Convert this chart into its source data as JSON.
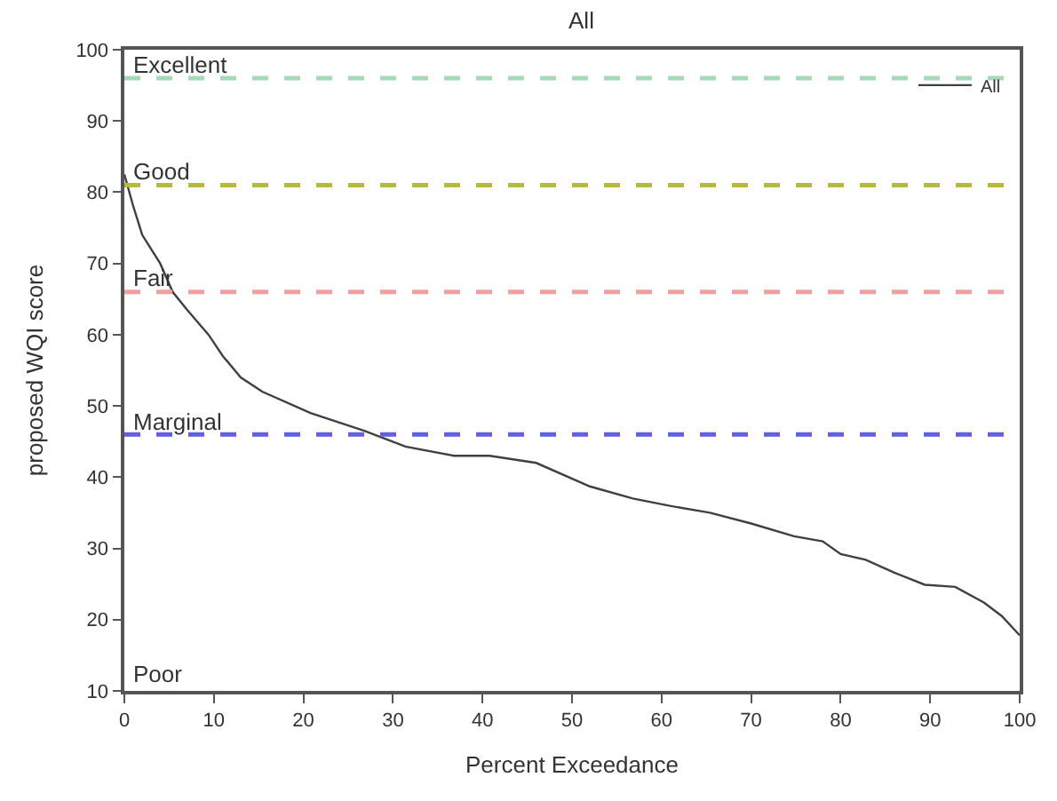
{
  "chart_data": {
    "type": "line",
    "title": "All",
    "xlabel": "Percent Exceedance",
    "ylabel": "proposed WQI score",
    "xlim": [
      0,
      100
    ],
    "xticks": [
      0,
      10,
      20,
      30,
      40,
      50,
      60,
      70,
      80,
      90,
      100
    ],
    "ylim": [
      10,
      100
    ],
    "yticks": [
      10,
      20,
      30,
      40,
      50,
      60,
      70,
      80,
      90,
      100
    ],
    "legend": "top right",
    "marker": "none",
    "line_style": "solid",
    "series": [
      {
        "name": "All",
        "color": "#404040",
        "x": [
          0,
          1,
          2,
          3,
          4,
          5.4,
          7,
          9.4,
          11,
          13,
          15.4,
          20.8,
          26.8,
          31.4,
          36.8,
          40.8,
          46,
          52,
          56.8,
          60.8,
          65.4,
          70,
          74.8,
          78,
          80,
          82.8,
          86,
          89.4,
          92.8,
          96,
          98,
          100
        ],
        "values": [
          82.5,
          78,
          74,
          72,
          70,
          66,
          63.5,
          60,
          57,
          54,
          52,
          49,
          46.5,
          44.3,
          43,
          43,
          42,
          38.7,
          37,
          36,
          35,
          33.5,
          31.7,
          31,
          29.2,
          28.4,
          26.6,
          24.9,
          24.6,
          22.4,
          20.5,
          17.8
        ]
      }
    ],
    "ref_lines": [
      {
        "axis": "y",
        "value": 96,
        "label": "Excellent",
        "color": "#a8d8b8",
        "line_style": "dashed"
      },
      {
        "axis": "y",
        "value": 81,
        "label": "Good",
        "color": "#b8b840",
        "line_style": "dashed"
      },
      {
        "axis": "y",
        "value": 66,
        "label": "Fair",
        "color": "#f0a0a0",
        "line_style": "dashed"
      },
      {
        "axis": "y",
        "value": 46,
        "label": "Marginal",
        "color": "#6060e0",
        "line_style": "dashed"
      }
    ],
    "annotations": [
      "Poor"
    ]
  }
}
